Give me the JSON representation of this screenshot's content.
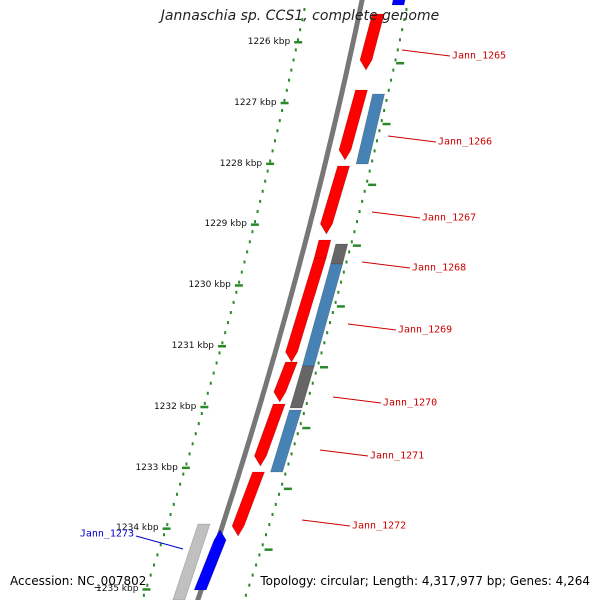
{
  "title": "Jannaschia sp. CCS1, complete genome",
  "accession_text": "Accession: NC_007802",
  "stats_text": "Topology: circular; Length: 4,317,977 bp; Genes: 4,264",
  "kbp_ticks": [
    "1226 kbp",
    "1227 kbp",
    "1228 kbp",
    "1229 kbp",
    "1230 kbp",
    "1231 kbp",
    "1232 kbp",
    "1233 kbp",
    "1234 kbp",
    "1235 kbp"
  ],
  "genes": [
    {
      "label": "Jann_1265",
      "strand": "+"
    },
    {
      "label": "Jann_1266",
      "strand": "+"
    },
    {
      "label": "Jann_1267",
      "strand": "+"
    },
    {
      "label": "Jann_1268",
      "strand": "+"
    },
    {
      "label": "Jann_1269",
      "strand": "+"
    },
    {
      "label": "Jann_1270",
      "strand": "+"
    },
    {
      "label": "Jann_1271",
      "strand": "+"
    },
    {
      "label": "Jann_1272",
      "strand": "+"
    },
    {
      "label": "Jann_1273",
      "strand": "-"
    }
  ],
  "colors": {
    "cds": "#ff0000",
    "cds_dark": "#bb0000",
    "rna_like": "#4682b4",
    "gray_feature": "#666666",
    "minus_strand": "#0000ff",
    "backbone": "#777777",
    "tick": "#2a8a2a",
    "plus_label": "#cc0000",
    "minus_label": "#0000cc"
  }
}
